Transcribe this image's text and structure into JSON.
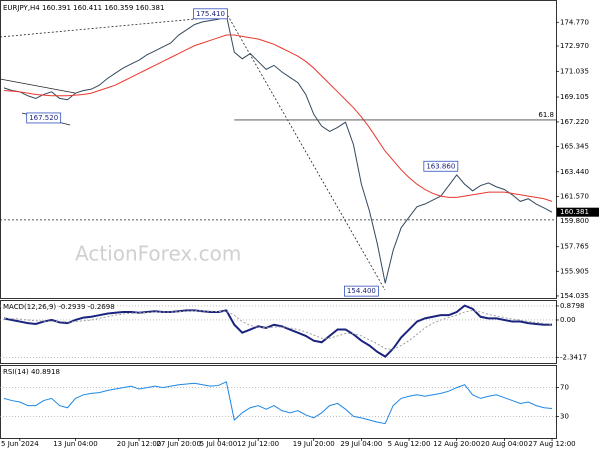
{
  "chart_data": [
    {
      "type": "line",
      "title": "EURJPY,H4 160.391 160.411 160.359 160.381",
      "watermark": "ActionForex.com",
      "categories": [
        null,
        null,
        "5 Jun 2024",
        null,
        null,
        null,
        null,
        null,
        null,
        "13 Jun 04:00",
        null,
        null,
        null,
        null,
        null,
        null,
        null,
        "20 Jun 12:00",
        null,
        null,
        null,
        null,
        "27 Jun 20:00",
        null,
        null,
        null,
        null,
        "5 Jul 04:00",
        null,
        null,
        null,
        null,
        "12 Jul 12:00",
        null,
        null,
        null,
        null,
        null,
        null,
        "19 Jul 20:00",
        null,
        null,
        null,
        null,
        null,
        "29 Jul 04:00",
        null,
        null,
        null,
        null,
        null,
        "5 Aug 12:00",
        null,
        null,
        null,
        null,
        null,
        "12 Aug 20:00",
        null,
        null,
        null,
        null,
        null,
        "20 Aug 04:00",
        null,
        null,
        null,
        null,
        null,
        "27 Aug 12:00"
      ],
      "series": [
        {
          "name": "EURJPY",
          "color": "#34495e",
          "values": [
            169.8,
            169.6,
            169.5,
            169.2,
            169.0,
            169.3,
            169.5,
            169.0,
            168.9,
            169.4,
            169.6,
            169.7,
            170.0,
            170.5,
            170.9,
            171.3,
            171.6,
            171.9,
            172.3,
            172.6,
            172.9,
            173.2,
            173.8,
            174.2,
            174.6,
            174.8,
            174.9,
            175.0,
            175.3,
            172.5,
            172.0,
            172.4,
            171.8,
            171.2,
            171.5,
            171.0,
            170.6,
            170.2,
            169.3,
            167.8,
            166.9,
            166.5,
            166.8,
            167.2,
            165.5,
            162.5,
            160.5,
            158.0,
            155.0,
            157.5,
            159.2,
            160.0,
            160.8,
            161.0,
            161.3,
            161.6,
            162.4,
            163.2,
            162.5,
            162.0,
            162.4,
            162.6,
            162.3,
            162.1,
            161.7,
            161.2,
            161.4,
            161.0,
            160.7,
            160.381
          ]
        },
        {
          "name": "MA",
          "color": "#e8382e",
          "values": [
            169.6,
            169.55,
            169.5,
            169.4,
            169.3,
            169.25,
            169.2,
            169.2,
            169.2,
            169.25,
            169.3,
            169.4,
            169.6,
            169.8,
            170.0,
            170.3,
            170.6,
            170.9,
            171.2,
            171.5,
            171.8,
            172.1,
            172.4,
            172.7,
            173.0,
            173.2,
            173.4,
            173.6,
            173.8,
            173.8,
            173.7,
            173.6,
            173.5,
            173.3,
            173.1,
            172.8,
            172.5,
            172.2,
            171.8,
            171.3,
            170.7,
            170.1,
            169.5,
            168.9,
            168.3,
            167.6,
            166.8,
            165.9,
            165.0,
            164.3,
            163.6,
            163.0,
            162.5,
            162.1,
            161.8,
            161.6,
            161.5,
            161.5,
            161.6,
            161.7,
            161.8,
            161.9,
            161.9,
            161.9,
            161.8,
            161.7,
            161.6,
            161.5,
            161.4,
            161.2
          ]
        }
      ],
      "ylim": [
        153.88,
        176.38
      ],
      "yticks": [
        {
          "value": 174.77,
          "label": "174.770"
        },
        {
          "value": 172.97,
          "label": "172.970"
        },
        171.035,
        169.105,
        {
          "value": 167.22,
          "label": "167.220"
        },
        165.345,
        {
          "value": 163.44,
          "label": "163.440"
        },
        {
          "value": 161.57,
          "label": "161.570"
        },
        157.765,
        155.905,
        154.035
      ],
      "annotations": [
        {
          "label": "175.410",
          "value": 175.41,
          "index": 26
        },
        {
          "label": "167.520",
          "value": 167.52,
          "index": 5
        },
        {
          "label": "163.860",
          "value": 163.86,
          "index": 55
        },
        {
          "label": "154.400",
          "value": 154.4,
          "index": 45
        }
      ],
      "fib_level": {
        "label": "61.8",
        "value": 167.37,
        "index": 29
      },
      "hline": {
        "value": 159.8,
        "label": "159.800"
      },
      "last_price": {
        "value": 160.381,
        "label": "160.381"
      }
    },
    {
      "type": "line",
      "title": "MACD(12,26,9) -0.2939 -0.2698",
      "series": [
        {
          "name": "MACD",
          "color": "#1a237e",
          "values": [
            0.1,
            0.0,
            -0.1,
            -0.2,
            -0.25,
            -0.1,
            0.0,
            -0.15,
            -0.2,
            0.0,
            0.15,
            0.2,
            0.3,
            0.4,
            0.45,
            0.5,
            0.5,
            0.45,
            0.5,
            0.55,
            0.5,
            0.5,
            0.55,
            0.6,
            0.6,
            0.55,
            0.5,
            0.5,
            0.6,
            -0.3,
            -0.8,
            -0.6,
            -0.4,
            -0.5,
            -0.3,
            -0.4,
            -0.6,
            -0.8,
            -1.0,
            -1.3,
            -1.4,
            -1.0,
            -0.6,
            -0.6,
            -0.9,
            -1.3,
            -1.6,
            -2.0,
            -2.3,
            -1.8,
            -1.1,
            -0.6,
            -0.1,
            0.1,
            0.2,
            0.3,
            0.3,
            0.5,
            0.9,
            0.7,
            0.2,
            0.1,
            0.1,
            0.0,
            -0.1,
            -0.1,
            -0.2,
            -0.25,
            -0.3,
            -0.2939
          ]
        },
        {
          "name": "Signal",
          "color": "#9e9e9e",
          "values": [
            0.1,
            0.08,
            0.05,
            0.0,
            -0.05,
            -0.08,
            -0.08,
            -0.1,
            -0.12,
            -0.1,
            -0.05,
            0.0,
            0.1,
            0.2,
            0.3,
            0.37,
            0.42,
            0.45,
            0.47,
            0.5,
            0.5,
            0.5,
            0.52,
            0.55,
            0.57,
            0.57,
            0.55,
            0.53,
            0.55,
            0.3,
            -0.1,
            -0.35,
            -0.45,
            -0.5,
            -0.45,
            -0.43,
            -0.5,
            -0.6,
            -0.75,
            -0.95,
            -1.15,
            -1.15,
            -1.0,
            -0.85,
            -0.85,
            -1.0,
            -1.25,
            -1.5,
            -1.8,
            -1.85,
            -1.6,
            -1.3,
            -0.9,
            -0.5,
            -0.2,
            0.0,
            0.15,
            0.3,
            0.5,
            0.6,
            0.5,
            0.35,
            0.25,
            0.15,
            0.05,
            0.0,
            -0.1,
            -0.15,
            -0.22,
            -0.2698
          ]
        }
      ],
      "ylim": [
        -2.7,
        1.19
      ],
      "yticks": [
        0.8798,
        {
          "value": 0,
          "label": "0.00"
        },
        -2.3417
      ]
    },
    {
      "type": "line",
      "title": "RSI(14) 40.8918",
      "series": [
        {
          "name": "RSI",
          "color": "#1e88e5",
          "values": [
            55,
            52,
            50,
            45,
            45,
            52,
            55,
            45,
            42,
            55,
            60,
            62,
            63,
            66,
            68,
            70,
            72,
            68,
            70,
            72,
            70,
            72,
            74,
            75,
            76,
            74,
            72,
            73,
            78,
            25,
            35,
            42,
            45,
            40,
            45,
            38,
            35,
            38,
            32,
            28,
            35,
            45,
            48,
            40,
            30,
            28,
            25,
            22,
            20,
            45,
            55,
            58,
            60,
            58,
            60,
            62,
            65,
            70,
            74,
            60,
            55,
            58,
            60,
            56,
            52,
            48,
            50,
            45,
            42,
            40.8918
          ]
        }
      ],
      "ylim": [
        0,
        100
      ],
      "yticks": [
        70,
        30
      ]
    }
  ]
}
